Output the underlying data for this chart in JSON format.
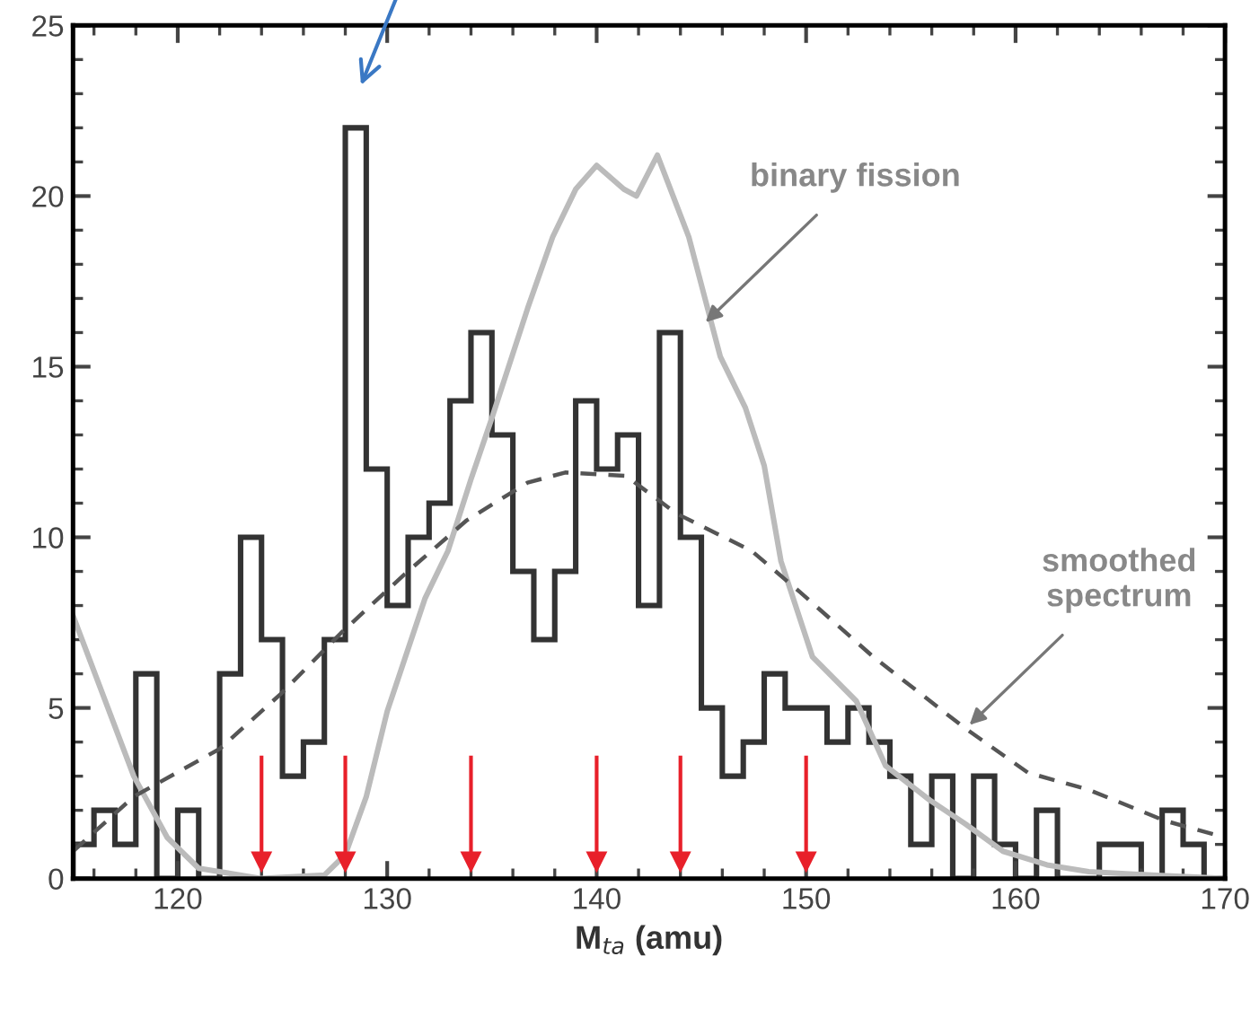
{
  "chart_data": {
    "type": "histogram",
    "xlabel": "M$_{ta}$ (amu)",
    "xlim": [
      115,
      170
    ],
    "xticks": [
      120,
      130,
      140,
      150,
      160,
      170
    ],
    "ylim": [
      0,
      25
    ],
    "yticks": [
      0,
      5,
      10,
      15,
      20,
      25
    ],
    "grid": false,
    "legend": false,
    "series": [
      {
        "color": "#333333",
        "bins": [
          115,
          116,
          117,
          118,
          119,
          120,
          121,
          122,
          123,
          124,
          125,
          126,
          127,
          128,
          129,
          130,
          131,
          132,
          133,
          134,
          135,
          136,
          137,
          138,
          139,
          140,
          141,
          142,
          143,
          144,
          145,
          146,
          147,
          148,
          149,
          150,
          151,
          152,
          153,
          154,
          155,
          156,
          157,
          158,
          159,
          160,
          161,
          162,
          163,
          164,
          165,
          166,
          167,
          168,
          169,
          170
        ],
        "values": [
          1,
          2,
          1,
          6,
          0,
          2,
          0,
          6,
          10,
          7,
          3,
          4,
          7,
          22,
          12,
          8,
          10,
          11,
          14,
          16,
          13,
          9,
          7,
          9,
          14,
          12,
          13,
          8,
          16,
          10,
          5,
          3,
          4,
          6,
          5,
          5,
          4,
          5,
          4,
          3,
          1,
          3,
          0,
          3,
          1,
          0,
          2,
          0,
          0,
          1,
          1,
          0,
          2,
          1,
          0
        ]
      },
      {
        "type": "line",
        "color": "#bbbbbb",
        "line_style": "solid",
        "x": [
          115,
          117.9,
          119.5,
          121,
          124,
          127,
          128,
          129,
          130,
          131.8,
          132.9,
          134,
          135,
          136.7,
          137.9,
          139,
          140,
          141.3,
          141.9,
          142.9,
          144.4,
          145.9,
          147.1,
          148,
          148.8,
          150.3,
          152.4,
          153.8,
          155.9,
          157.6,
          159.4,
          161.5,
          163.5,
          166.5,
          170
        ],
        "values": [
          7.7,
          3.0,
          1.2,
          0.3,
          0,
          0.1,
          0.7,
          2.4,
          4.9,
          8.2,
          9.6,
          11.7,
          13.5,
          16.7,
          18.8,
          20.2,
          20.9,
          20.2,
          20.0,
          21.2,
          18.8,
          15.3,
          13.8,
          12.1,
          9.3,
          6.5,
          5.2,
          3.3,
          2.3,
          1.6,
          0.8,
          0.4,
          0.2,
          0.1,
          0
        ]
      },
      {
        "type": "scatter",
        "color": "#e8202a",
        "marker": "triangle",
        "x": [
          124,
          128,
          134,
          140,
          144,
          150
        ],
        "values": [
          0.5,
          0.5,
          0.5,
          0.5,
          0.5,
          0.5
        ],
        "errors": [
          [
            0.5,
            3.6
          ],
          [
            0.5,
            3.6
          ],
          [
            0.5,
            3.6
          ],
          [
            0.5,
            3.6
          ],
          [
            0.5,
            3.6
          ],
          [
            0.5,
            3.6
          ]
        ]
      },
      {
        "type": "line",
        "color": "#555555",
        "line_style": "dashed",
        "x": [
          115,
          117.9,
          122,
          124.9,
          127.8,
          130.8,
          133.8,
          136.7,
          138.5,
          141.4,
          143.8,
          147.4,
          149.7,
          153.2,
          157.6,
          160.6,
          163.5,
          167.1,
          170
        ],
        "values": [
          0.8,
          2.4,
          3.8,
          5.4,
          7.2,
          8.9,
          10.5,
          11.6,
          11.9,
          11.8,
          10.7,
          9.6,
          8.4,
          6.5,
          4.4,
          3.1,
          2.6,
          1.7,
          1.2
        ]
      }
    ],
    "annotations": [
      {
        "text": "binary fission",
        "x": 145.2,
        "y": 16.3
      },
      {
        "text": "smoothed\nspectrum",
        "x": 157.8,
        "y": 4.5
      }
    ]
  }
}
